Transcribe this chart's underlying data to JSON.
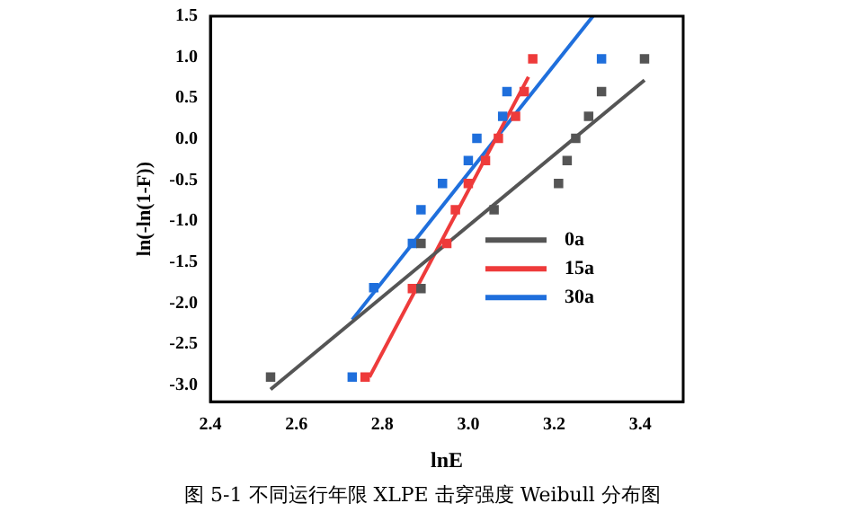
{
  "chart_data": {
    "type": "scatter",
    "xlabel": "lnE",
    "ylabel": "ln(-ln(1-F))",
    "xlim": [
      2.4,
      3.5
    ],
    "ylim": [
      -3.2,
      1.5
    ],
    "xticks": [
      {
        "value": 2.4,
        "label": "2.4"
      },
      {
        "value": 2.6,
        "label": "2.6"
      },
      {
        "value": 2.8,
        "label": "2.8"
      },
      {
        "value": 3.0,
        "label": "3.0"
      },
      {
        "value": 3.2,
        "label": "3.2"
      },
      {
        "value": 3.4,
        "label": "3.4"
      }
    ],
    "yticks": [
      {
        "value": -3,
        "label": "-3.0"
      },
      {
        "value": -2.5,
        "label": "-2.5"
      },
      {
        "value": -2,
        "label": "-2.0"
      },
      {
        "value": -1.5,
        "label": "-1.5"
      },
      {
        "value": -1,
        "label": "-1.0"
      },
      {
        "value": -0.5,
        "label": "-0.5"
      },
      {
        "value": 0,
        "label": "0.0"
      },
      {
        "value": 0.5,
        "label": "0.5"
      },
      {
        "value": 1,
        "label": "1.0"
      },
      {
        "value": 1.5,
        "label": "1.5"
      }
    ],
    "grid": false,
    "legend": "bottom right",
    "marker": "square",
    "series": [
      {
        "color": "#555555",
        "x": [
          2.54,
          2.89,
          2.89,
          3.06,
          3.21,
          3.23,
          3.25,
          3.28,
          3.31,
          3.41
        ],
        "values": [
          -2.9,
          -1.82,
          -1.27,
          -0.86,
          -0.54,
          -0.26,
          0.01,
          0.28,
          0.58,
          0.98
        ]
      },
      {
        "color": "#ee3b3b",
        "x": [
          2.76,
          2.87,
          2.95,
          2.97,
          3.0,
          3.04,
          3.07,
          3.11,
          3.13,
          3.15
        ],
        "values": [
          -2.9,
          -1.82,
          -1.27,
          -0.86,
          -0.54,
          -0.26,
          0.01,
          0.28,
          0.58,
          0.98
        ]
      },
      {
        "color": "#1f6fdc",
        "x": [
          2.73,
          2.78,
          2.87,
          2.89,
          2.94,
          3.0,
          3.02,
          3.08,
          3.09,
          3.31
        ],
        "values": [
          -2.9,
          -1.81,
          -1.27,
          -0.86,
          -0.54,
          -0.26,
          0.01,
          0.28,
          0.58,
          0.98
        ]
      },
      {
        "type": "line",
        "name": "0a",
        "color": "#555555",
        "marker": "none",
        "x": [
          2.54,
          3.41
        ],
        "values": [
          -3.05,
          0.72
        ]
      },
      {
        "type": "line",
        "name": "15a",
        "color": "#ee3b3b",
        "marker": "none",
        "x": [
          2.77,
          3.14
        ],
        "values": [
          -2.9,
          0.76
        ]
      },
      {
        "type": "line",
        "name": "30a",
        "color": "#1f6fdc",
        "marker": "none",
        "x": [
          2.73,
          3.29
        ],
        "values": [
          -2.2,
          1.5
        ]
      }
    ],
    "annotations": [
      "图 5-1  不同运行年限 XLPE 击穿强度 Weibull 分布图"
    ]
  }
}
